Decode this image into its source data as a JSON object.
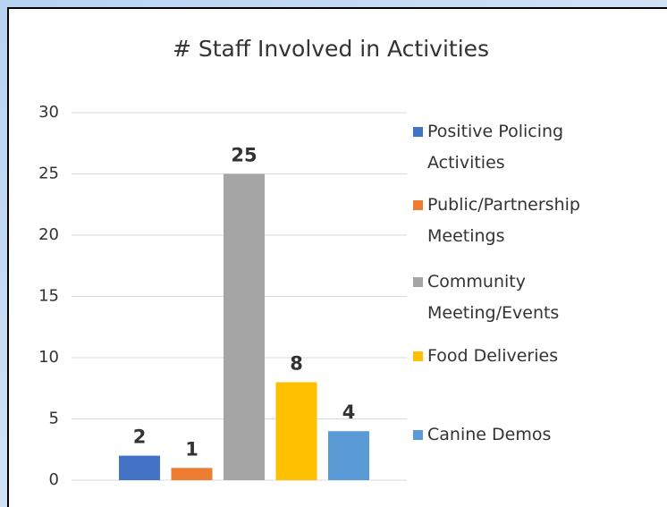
{
  "chart_data": {
    "type": "bar",
    "title": "# Staff Involved in Activities",
    "categories": [
      null
    ],
    "series": [
      {
        "name": "Positive Policing Activities",
        "color": "#4472c4",
        "values": [
          2
        ]
      },
      {
        "name": "Public/Partnership Meetings",
        "color": "#ed7d31",
        "values": [
          1
        ]
      },
      {
        "name": "Community Meeting/Events",
        "color": "#a5a5a5",
        "values": [
          25
        ]
      },
      {
        "name": "Food Deliveries",
        "color": "#ffc000",
        "values": [
          8
        ]
      },
      {
        "name": "Canine Demos",
        "color": "#5b9bd5",
        "values": [
          4
        ]
      }
    ],
    "ylim": [
      0,
      30
    ],
    "yticks": [
      0,
      5,
      10,
      15,
      20,
      25,
      30
    ],
    "grid": true,
    "legend": "right"
  }
}
